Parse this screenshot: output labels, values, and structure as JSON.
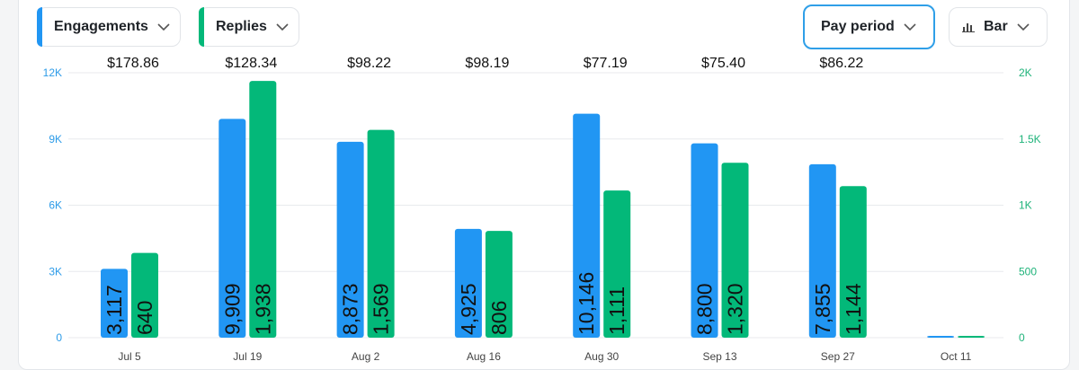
{
  "controls": {
    "engagements_label": "Engagements",
    "replies_label": "Replies",
    "period_label": "Pay period",
    "chart_type_label": "Bar"
  },
  "colors": {
    "engagements": "#2196f3",
    "replies": "#03b879",
    "left_axis": "#2d9be8",
    "right_axis": "#1fb37a"
  },
  "icons": {
    "dropdown": "chevron-down-icon",
    "chart_type": "bar-chart-icon"
  },
  "chart_data": {
    "type": "bar",
    "categories": [
      "Jul 5",
      "Jul 19",
      "Aug 2",
      "Aug 16",
      "Aug 30",
      "Sep 13",
      "Sep 27",
      "Oct 11"
    ],
    "series": [
      {
        "name": "Engagements",
        "axis": "left",
        "values": [
          3117,
          9909,
          8873,
          4925,
          10146,
          8800,
          7855,
          0
        ],
        "labels": [
          "3,117",
          "9,909",
          "8,873",
          "4,925",
          "10,146",
          "8,800",
          "7,855",
          ""
        ]
      },
      {
        "name": "Replies",
        "axis": "right",
        "values": [
          640,
          1938,
          1569,
          806,
          1111,
          1320,
          1144,
          0
        ],
        "labels": [
          "640",
          "1,938",
          "1,569",
          "806",
          "1,111",
          "1,320",
          "1,144",
          ""
        ]
      }
    ],
    "annotations": [
      "$178.86",
      "$128.34",
      "$98.22",
      "$98.19",
      "$77.19",
      "$75.40",
      "$86.22",
      ""
    ],
    "y_left": {
      "ticks": [
        "0",
        "3K",
        "6K",
        "9K",
        "12K"
      ],
      "ylim": [
        0,
        12000
      ]
    },
    "y_right": {
      "ticks": [
        "0",
        "500",
        "1K",
        "1.5K",
        "2K"
      ],
      "ylim": [
        0,
        2000
      ]
    },
    "grid": true
  }
}
